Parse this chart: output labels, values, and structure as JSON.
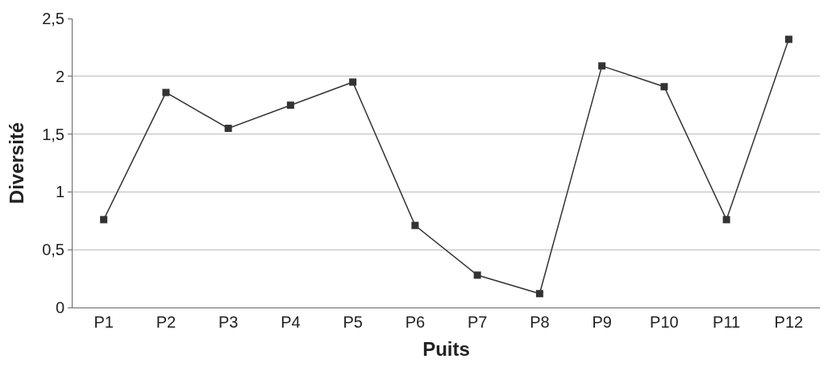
{
  "chart_data": {
    "type": "line",
    "xlabel": "Puits",
    "ylabel": "Diversité",
    "categories": [
      "P1",
      "P2",
      "P3",
      "P4",
      "P5",
      "P6",
      "P7",
      "P8",
      "P9",
      "P10",
      "P11",
      "P12"
    ],
    "series": [
      {
        "color": "#333333",
        "values": [
          0.76,
          1.86,
          1.55,
          1.75,
          1.95,
          0.71,
          0.28,
          0.12,
          2.09,
          1.91,
          0.76,
          2.32
        ]
      }
    ],
    "ylim": [
      0,
      2.5
    ],
    "yticks": [
      {
        "value": 0,
        "label": "0"
      },
      {
        "value": 0.5,
        "label": "0,5"
      },
      {
        "value": 1,
        "label": "1"
      },
      {
        "value": 1.5,
        "label": "1,5"
      },
      {
        "value": 2,
        "label": "2"
      },
      {
        "value": 2.5,
        "label": "2,5"
      }
    ],
    "grid": "y",
    "marker": "square",
    "line_style": "solid",
    "legend": false
  }
}
